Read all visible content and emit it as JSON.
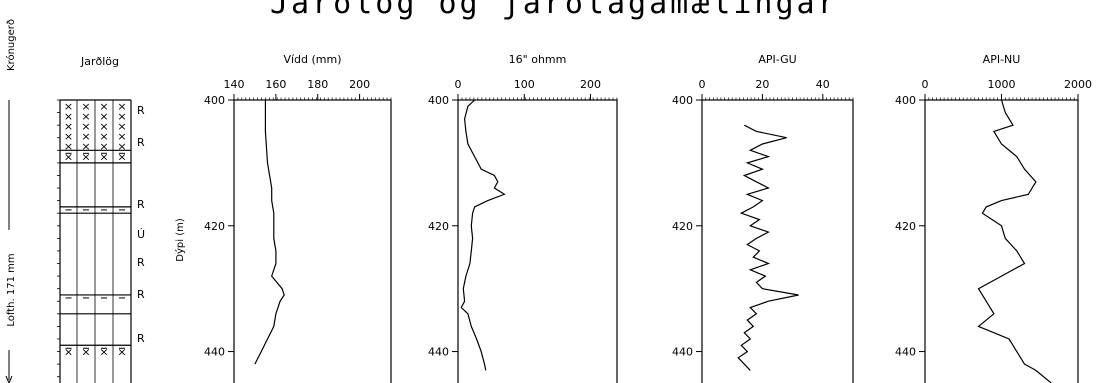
{
  "title": "Jarðlög og jarðlagamælingar",
  "side_labels": {
    "top": "Krónugerð",
    "bottom": "Lofth. 171 mm"
  },
  "lithology": {
    "header": "Jarðlög",
    "units": [
      {
        "from": 400,
        "to": 408,
        "pattern": "cross",
        "label": "R"
      },
      {
        "from": 408,
        "to": 410,
        "pattern": "dash-cross",
        "label": "R"
      },
      {
        "from": 410,
        "to": 417,
        "pattern": "blank",
        "label": ""
      },
      {
        "from": 417,
        "to": 418,
        "pattern": "dash",
        "label": "R"
      },
      {
        "from": 418,
        "to": 431,
        "pattern": "blank",
        "label": "Ú R"
      },
      {
        "from": 431,
        "to": 434,
        "pattern": "dash",
        "label": "R"
      },
      {
        "from": 434,
        "to": 439,
        "pattern": "blank",
        "label": ""
      },
      {
        "from": 439,
        "to": 445,
        "pattern": "dash-cross",
        "label": "R"
      }
    ],
    "inline_labels": [
      "R",
      "R",
      "R",
      "Ú",
      "R",
      "R",
      "R"
    ]
  },
  "y_axis": {
    "label": "Dýpi (m)",
    "ticks": [
      400,
      420,
      440
    ],
    "range": [
      400,
      445
    ],
    "inverted": true
  },
  "chart_data": [
    {
      "type": "line",
      "title": "Vídd (mm)",
      "xlim": [
        140,
        215
      ],
      "xticks": [
        140,
        160,
        180,
        200
      ],
      "y": [
        400,
        405,
        410,
        412,
        414,
        416,
        418,
        420,
        422,
        424,
        426,
        428,
        430,
        431,
        432,
        434,
        436,
        438,
        440,
        442
      ],
      "x": [
        155,
        155,
        156,
        157,
        158,
        158,
        159,
        159,
        159,
        160,
        160,
        158,
        163,
        164,
        162,
        160,
        159,
        156,
        153,
        150
      ]
    },
    {
      "type": "line",
      "title": "16\" ohmm",
      "xlim": [
        0,
        240
      ],
      "xticks": [
        0,
        100,
        200
      ],
      "y": [
        400,
        401,
        403,
        405,
        407,
        409,
        411,
        412,
        413,
        414,
        415,
        416,
        417,
        418,
        420,
        422,
        424,
        426,
        428,
        430,
        432,
        433,
        434,
        436,
        438,
        440,
        442,
        443
      ],
      "x": [
        25,
        15,
        10,
        12,
        15,
        25,
        35,
        55,
        60,
        55,
        70,
        45,
        25,
        22,
        20,
        22,
        20,
        18,
        12,
        8,
        10,
        5,
        15,
        20,
        28,
        35,
        40,
        42
      ]
    },
    {
      "type": "line",
      "title": "API-GU",
      "xlim": [
        0,
        50
      ],
      "xticks": [
        0,
        20,
        40
      ],
      "y": [
        404,
        405,
        406,
        407,
        408,
        409,
        410,
        411,
        412,
        413,
        414,
        415,
        416,
        417,
        418,
        419,
        420,
        421,
        422,
        423,
        424,
        425,
        426,
        427,
        428,
        429,
        430,
        431,
        432,
        433,
        434,
        435,
        436,
        437,
        438,
        439,
        440,
        441,
        442,
        443
      ],
      "x": [
        14,
        18,
        28,
        20,
        16,
        22,
        15,
        20,
        14,
        18,
        22,
        15,
        20,
        17,
        13,
        19,
        16,
        22,
        18,
        15,
        19,
        17,
        22,
        16,
        21,
        18,
        20,
        32,
        22,
        16,
        18,
        15,
        17,
        14,
        16,
        13,
        15,
        12,
        14,
        16
      ]
    },
    {
      "type": "line",
      "title": "API-NU",
      "xlim": [
        0,
        2000
      ],
      "xticks": [
        0,
        1000,
        2000
      ],
      "y": [
        400,
        402,
        404,
        405,
        407,
        409,
        411,
        413,
        415,
        416,
        417,
        418,
        420,
        422,
        424,
        426,
        428,
        430,
        432,
        434,
        436,
        438,
        440,
        442,
        443,
        445
      ],
      "x": [
        1000,
        1050,
        1150,
        900,
        1000,
        1200,
        1300,
        1450,
        1350,
        1000,
        800,
        750,
        1000,
        1050,
        1200,
        1300,
        1000,
        700,
        800,
        900,
        700,
        1100,
        1200,
        1300,
        1450,
        1650
      ]
    }
  ]
}
